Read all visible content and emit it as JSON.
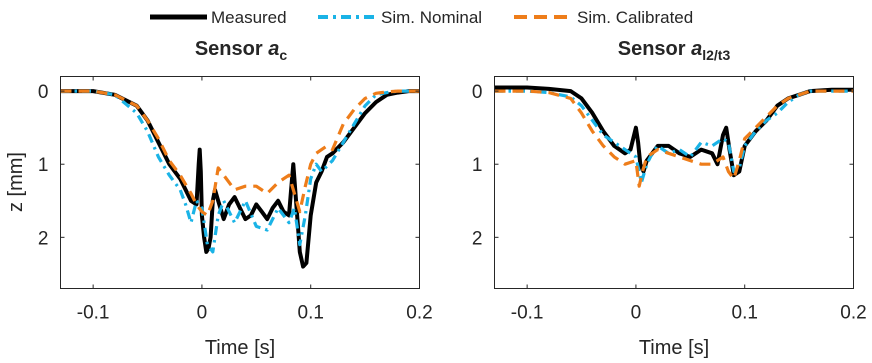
{
  "legend": [
    {
      "label": "Measured",
      "color": "#000000",
      "style": "solid"
    },
    {
      "label": "Sim. Nominal",
      "color": "#1ab3e6",
      "style": "dash-dot"
    },
    {
      "label": "Sim. Calibrated",
      "color": "#ee7d1a",
      "style": "dashed"
    }
  ],
  "chart_data": [
    {
      "type": "line",
      "title": "Sensor",
      "title_var": "a",
      "title_sub": "c",
      "xlabel": "Time [s]",
      "ylabel": "z [mm]",
      "xlim": [
        -0.13,
        0.2
      ],
      "ylim": [
        -0.2,
        2.7
      ],
      "y_reversed": true,
      "xticks": [
        -0.1,
        0,
        0.1,
        0.2
      ],
      "xtick_labels": [
        "-0.1",
        "0",
        "0.1",
        "0.2"
      ],
      "yticks": [
        0,
        1,
        2
      ],
      "ytick_labels": [
        "0",
        "1",
        "2"
      ],
      "grid": false,
      "series": [
        {
          "name": "Measured",
          "color": "#000000",
          "x": [
            -0.13,
            -0.1,
            -0.08,
            -0.06,
            -0.05,
            -0.04,
            -0.03,
            -0.02,
            -0.015,
            -0.01,
            -0.005,
            -0.003,
            -0.002,
            -0.001,
            0,
            0.002,
            0.004,
            0.006,
            0.008,
            0.01,
            0.012,
            0.015,
            0.02,
            0.025,
            0.03,
            0.035,
            0.04,
            0.045,
            0.05,
            0.055,
            0.06,
            0.065,
            0.07,
            0.075,
            0.08,
            0.082,
            0.084,
            0.086,
            0.088,
            0.09,
            0.093,
            0.096,
            0.1,
            0.105,
            0.11,
            0.115,
            0.12,
            0.13,
            0.14,
            0.15,
            0.16,
            0.17,
            0.18,
            0.19,
            0.2
          ],
          "y": [
            0,
            0,
            0.05,
            0.2,
            0.4,
            0.7,
            1.0,
            1.2,
            1.35,
            1.5,
            1.55,
            1.0,
            0.8,
            1.1,
            1.7,
            2.0,
            2.2,
            2.15,
            2.0,
            1.5,
            1.35,
            1.5,
            1.75,
            1.55,
            1.45,
            1.6,
            1.75,
            1.7,
            1.55,
            1.65,
            1.75,
            1.6,
            1.5,
            1.65,
            1.7,
            1.35,
            1.0,
            1.4,
            1.8,
            2.2,
            2.4,
            2.35,
            1.7,
            1.25,
            1.1,
            0.9,
            0.85,
            0.7,
            0.5,
            0.3,
            0.15,
            0.05,
            0.02,
            0,
            0
          ]
        },
        {
          "name": "Sim. Nominal",
          "color": "#1ab3e6",
          "x": [
            -0.13,
            -0.1,
            -0.08,
            -0.06,
            -0.05,
            -0.04,
            -0.03,
            -0.02,
            -0.015,
            -0.01,
            -0.005,
            0,
            0.005,
            0.01,
            0.015,
            0.02,
            0.03,
            0.04,
            0.05,
            0.06,
            0.07,
            0.08,
            0.085,
            0.09,
            0.095,
            0.1,
            0.105,
            0.11,
            0.12,
            0.13,
            0.14,
            0.15,
            0.16,
            0.17,
            0.18,
            0.2
          ],
          "y": [
            0,
            0,
            0.05,
            0.3,
            0.55,
            0.9,
            1.15,
            1.35,
            1.55,
            1.8,
            1.5,
            1.6,
            2.1,
            2.2,
            1.7,
            1.5,
            1.8,
            1.5,
            1.85,
            1.9,
            1.6,
            1.8,
            1.6,
            2.1,
            1.7,
            1.2,
            1.0,
            1.1,
            0.95,
            0.7,
            0.45,
            0.2,
            0.05,
            0.02,
            0,
            0
          ]
        },
        {
          "name": "Sim. Calibrated",
          "color": "#ee7d1a",
          "x": [
            -0.13,
            -0.1,
            -0.08,
            -0.06,
            -0.05,
            -0.04,
            -0.03,
            -0.02,
            -0.01,
            -0.005,
            0,
            0.005,
            0.01,
            0.015,
            0.02,
            0.03,
            0.04,
            0.05,
            0.06,
            0.07,
            0.075,
            0.08,
            0.085,
            0.09,
            0.095,
            0.1,
            0.105,
            0.11,
            0.115,
            0.12,
            0.13,
            0.14,
            0.15,
            0.16,
            0.17,
            0.18,
            0.2
          ],
          "y": [
            0,
            0,
            0.05,
            0.2,
            0.4,
            0.65,
            0.95,
            1.15,
            1.4,
            1.55,
            1.65,
            1.7,
            1.5,
            1.05,
            1.15,
            1.35,
            1.3,
            1.3,
            1.4,
            1.25,
            1.2,
            1.15,
            1.4,
            1.65,
            1.3,
            1.0,
            0.85,
            0.8,
            0.75,
            0.8,
            0.45,
            0.25,
            0.1,
            0.03,
            0.01,
            0,
            0
          ]
        }
      ]
    },
    {
      "type": "line",
      "title": "Sensor",
      "title_var": "a",
      "title_sub": "l2/t3",
      "xlabel": "Time [s]",
      "ylabel": "",
      "xlim": [
        -0.13,
        0.2
      ],
      "ylim": [
        -0.2,
        2.7
      ],
      "y_reversed": true,
      "xticks": [
        -0.1,
        0,
        0.1,
        0.2
      ],
      "xtick_labels": [
        "-0.1",
        "0",
        "0.1",
        "0.2"
      ],
      "yticks": [
        0,
        1,
        2
      ],
      "ytick_labels": [
        "0",
        "1",
        "2"
      ],
      "grid": false,
      "series": [
        {
          "name": "Measured",
          "color": "#000000",
          "x": [
            -0.13,
            -0.1,
            -0.08,
            -0.06,
            -0.05,
            -0.04,
            -0.03,
            -0.02,
            -0.01,
            -0.005,
            0,
            0.002,
            0.004,
            0.007,
            0.01,
            0.015,
            0.02,
            0.03,
            0.04,
            0.05,
            0.06,
            0.07,
            0.075,
            0.08,
            0.083,
            0.086,
            0.09,
            0.095,
            0.1,
            0.11,
            0.12,
            0.13,
            0.14,
            0.15,
            0.16,
            0.18,
            0.2
          ],
          "y": [
            -0.05,
            -0.05,
            -0.03,
            0,
            0.1,
            0.3,
            0.55,
            0.75,
            0.85,
            0.8,
            0.5,
            0.7,
            1.0,
            1.1,
            0.95,
            0.85,
            0.75,
            0.75,
            0.85,
            0.9,
            0.8,
            0.85,
            1.0,
            0.6,
            0.5,
            0.8,
            1.15,
            1.1,
            0.75,
            0.55,
            0.4,
            0.2,
            0.1,
            0.05,
            0,
            -0.02,
            -0.02
          ]
        },
        {
          "name": "Sim. Nominal",
          "color": "#1ab3e6",
          "x": [
            -0.13,
            -0.1,
            -0.08,
            -0.06,
            -0.05,
            -0.04,
            -0.03,
            -0.02,
            -0.01,
            0,
            0.005,
            0.01,
            0.015,
            0.02,
            0.03,
            0.04,
            0.05,
            0.06,
            0.07,
            0.08,
            0.085,
            0.09,
            0.095,
            0.1,
            0.11,
            0.12,
            0.13,
            0.14,
            0.15,
            0.16,
            0.18,
            0.2
          ],
          "y": [
            0,
            0,
            0.02,
            0.08,
            0.2,
            0.4,
            0.6,
            0.7,
            0.8,
            0.9,
            1.25,
            1.0,
            0.85,
            0.75,
            0.85,
            0.8,
            0.9,
            0.7,
            0.75,
            0.65,
            0.7,
            1.1,
            1.05,
            0.75,
            0.55,
            0.4,
            0.3,
            0.15,
            0.05,
            0,
            0,
            0
          ]
        },
        {
          "name": "Sim. Calibrated",
          "color": "#ee7d1a",
          "x": [
            -0.13,
            -0.1,
            -0.08,
            -0.06,
            -0.05,
            -0.04,
            -0.03,
            -0.02,
            -0.01,
            0,
            0.003,
            0.006,
            0.01,
            0.015,
            0.02,
            0.03,
            0.04,
            0.05,
            0.06,
            0.07,
            0.08,
            0.085,
            0.09,
            0.095,
            0.1,
            0.11,
            0.12,
            0.13,
            0.14,
            0.15,
            0.16,
            0.18,
            0.2
          ],
          "y": [
            0,
            0,
            0.02,
            0.1,
            0.3,
            0.55,
            0.75,
            0.9,
            1.0,
            0.95,
            1.3,
            1.1,
            0.9,
            0.85,
            0.8,
            0.85,
            0.9,
            0.95,
            1.0,
            1.0,
            0.9,
            1.1,
            1.2,
            0.95,
            0.65,
            0.5,
            0.35,
            0.2,
            0.1,
            0.05,
            0,
            0,
            0
          ]
        }
      ]
    }
  ]
}
